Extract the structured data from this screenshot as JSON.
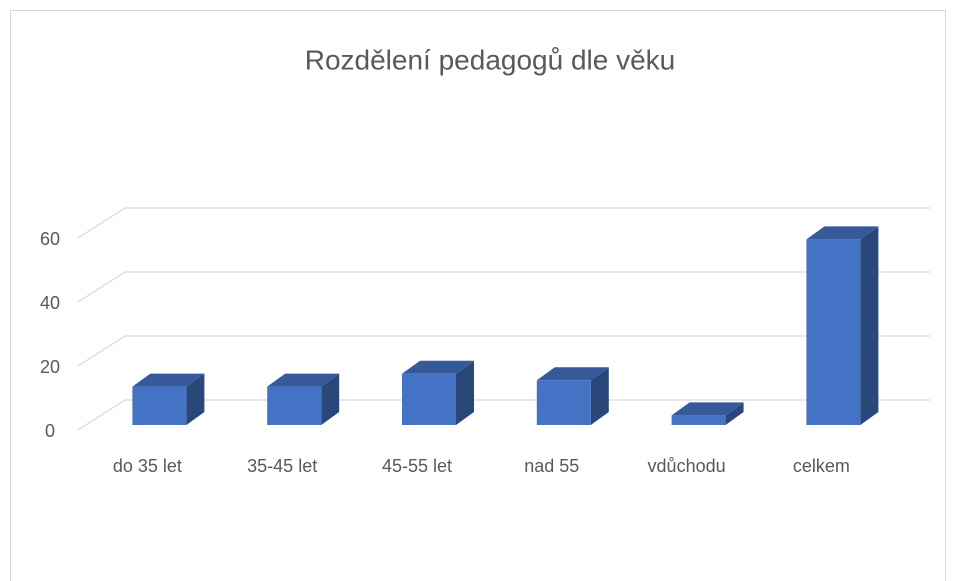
{
  "chart_data": {
    "type": "bar3d",
    "title": "Rozdělení pedagogů dle věku",
    "categories": [
      "do 35 let",
      "35-45 let",
      "45-55 let",
      "nad 55",
      "vdůchodu",
      "celkem"
    ],
    "values": [
      12,
      12,
      16,
      14,
      3,
      58
    ],
    "color": "#4472c4",
    "ylim": [
      0,
      60
    ],
    "yticks": [
      0,
      20,
      40,
      60
    ],
    "grid": true
  }
}
